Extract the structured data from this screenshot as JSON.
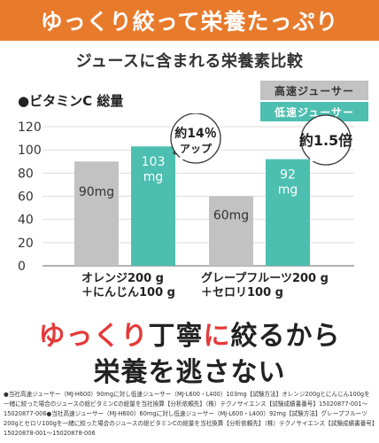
{
  "banner": {
    "text": "ゆっくり絞って栄養たっぷり"
  },
  "subtitle": "ジュースに含まれる栄養素比較",
  "metric": "●ビタミンC 総量",
  "legend": [
    {
      "label": "高速ジューサー",
      "color": "#c2c2c2"
    },
    {
      "label": "低速ジューサー",
      "color": "#4cbfb0"
    }
  ],
  "chart_data": {
    "type": "bar",
    "ylim": [
      0,
      120
    ],
    "yticks": [
      0,
      20,
      40,
      60,
      80,
      100,
      120
    ],
    "categories": [
      {
        "line1": "オレンジ200 g",
        "line2": "＋にんじん100 g"
      },
      {
        "line1": "グレープフルーツ200 g",
        "line2": "＋セロリ100 g"
      }
    ],
    "series": [
      {
        "name": "高速ジューサー",
        "color": "#c2c2c2",
        "values": [
          90,
          60
        ],
        "labels": [
          "90mg",
          "60mg"
        ]
      },
      {
        "name": "低速ジューサー",
        "color": "#4cbfb0",
        "values": [
          103,
          92
        ],
        "labels": [
          "103 mg",
          "92 mg"
        ]
      }
    ],
    "callouts": [
      {
        "line1": "約14％",
        "line2": "アップ"
      },
      {
        "line1": "約1.5倍",
        "line2": ""
      }
    ]
  },
  "tagline": {
    "line1_a": "ゆっくり",
    "line1_b": "丁寧",
    "line1_c": "に",
    "line1_d": "絞るから",
    "line2": "栄養を逃さない"
  },
  "footnote": "●当社高速ジューサー（MJ-H600）90mgに対し低速ジューサー（MJ-L600・L400）103mg【試験方法】オレンジ200gとにんじん100gを一緒に絞った場合のジュースの総ビタミンCの総量を当社換算【分析依頼先】（株）テクノサイエンス【試験成績書番号】15020877-001～15020877-006●当社高速ジューサー（MJ-H600）60mgに対し低速ジューサー（MJ-L600・L400）92mg【試験方法】グレープフルーツ200gとセロリ100gを一緒に絞った場合のジュースの総ビタミンCの総量を当社換算【分析依頼先】（株）テクノサイエンス【試験成績書番号】15020878-001～15020878-006"
}
